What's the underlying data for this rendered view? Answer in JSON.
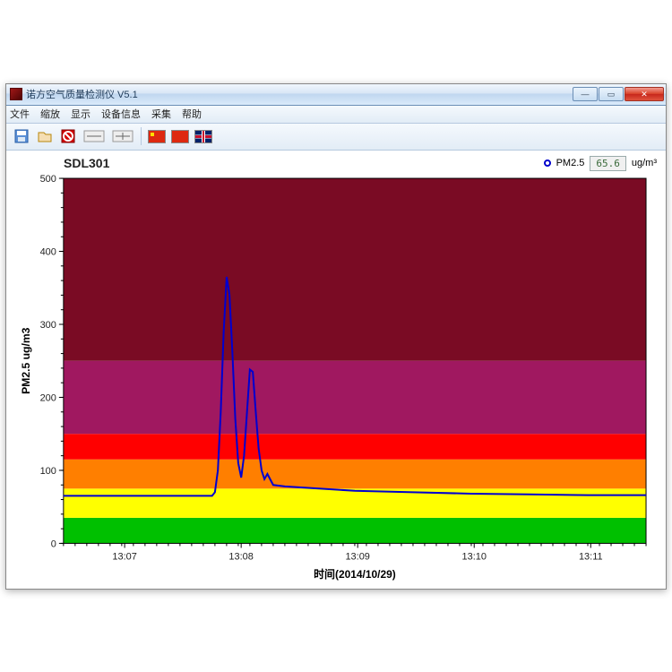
{
  "window": {
    "title": "诺方空气质量检测仪 V5.1"
  },
  "menubar": {
    "items": [
      "文件",
      "缩放",
      "显示",
      "设备信息",
      "采集",
      "帮助"
    ]
  },
  "toolbar": {
    "icons": [
      "save-icon",
      "open-icon",
      "stop-icon",
      "zoom-icon",
      "zoom-icon"
    ],
    "flags": [
      "cn",
      "cn2",
      "uk"
    ]
  },
  "chart": {
    "title": "SDL301",
    "legend_label": "PM2.5",
    "current_reading": "65.6",
    "unit": "ug/m³",
    "y_label": "PM2.5 ug/m3",
    "x_label": "时间(2014/10/29)",
    "ylim": [
      0,
      500
    ],
    "ytick_step": 100,
    "xticks": [
      "13:07",
      "13:08",
      "13:09",
      "13:10",
      "13:11"
    ],
    "xtick_positions": [
      0.105,
      0.305,
      0.505,
      0.705,
      0.905
    ],
    "plot_bg": "#ffffff",
    "line_color": "#0000d0",
    "line_width": 2,
    "bands": [
      {
        "from": 0,
        "to": 35,
        "color": "#00c000"
      },
      {
        "from": 35,
        "to": 75,
        "color": "#ffff00"
      },
      {
        "from": 75,
        "to": 115,
        "color": "#ff7f00"
      },
      {
        "from": 115,
        "to": 150,
        "color": "#ff0000"
      },
      {
        "from": 150,
        "to": 250,
        "color": "#a01860"
      },
      {
        "from": 250,
        "to": 500,
        "color": "#7a0b24"
      }
    ],
    "series": [
      [
        0.0,
        65
      ],
      [
        0.05,
        65
      ],
      [
        0.1,
        65
      ],
      [
        0.15,
        65
      ],
      [
        0.2,
        65
      ],
      [
        0.24,
        65
      ],
      [
        0.255,
        65
      ],
      [
        0.26,
        70
      ],
      [
        0.265,
        100
      ],
      [
        0.27,
        180
      ],
      [
        0.275,
        290
      ],
      [
        0.28,
        365
      ],
      [
        0.285,
        340
      ],
      [
        0.29,
        260
      ],
      [
        0.295,
        170
      ],
      [
        0.3,
        110
      ],
      [
        0.305,
        90
      ],
      [
        0.31,
        120
      ],
      [
        0.315,
        180
      ],
      [
        0.32,
        238
      ],
      [
        0.325,
        235
      ],
      [
        0.33,
        180
      ],
      [
        0.335,
        130
      ],
      [
        0.34,
        100
      ],
      [
        0.345,
        88
      ],
      [
        0.35,
        95
      ],
      [
        0.36,
        80
      ],
      [
        0.38,
        78
      ],
      [
        0.42,
        76
      ],
      [
        0.5,
        72
      ],
      [
        0.6,
        70
      ],
      [
        0.7,
        68
      ],
      [
        0.8,
        67
      ],
      [
        0.9,
        66
      ],
      [
        1.0,
        66
      ]
    ],
    "axis_color": "#000000",
    "tick_fontsize": 11,
    "label_fontsize": 12
  }
}
